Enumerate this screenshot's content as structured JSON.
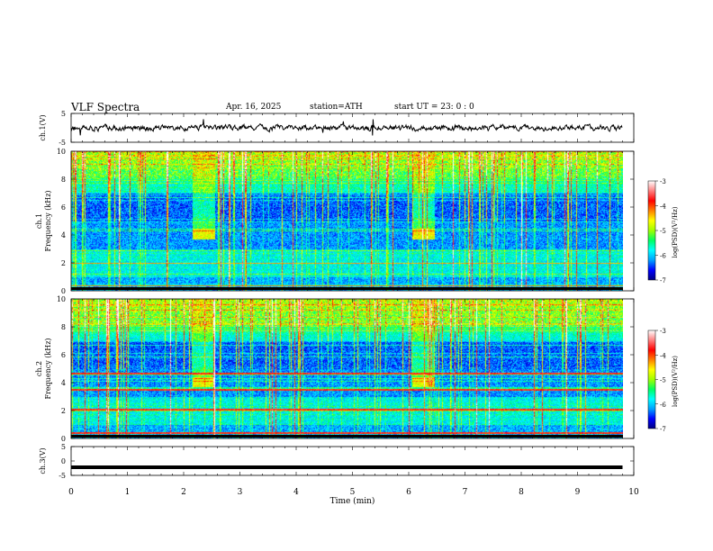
{
  "header": {
    "title": "VLF  Spectra",
    "date": "Apr. 16, 2025",
    "station": "station=ATH",
    "start_ut": "start  UT  =    23: 0   : 0"
  },
  "chart_data": [
    {
      "type": "line",
      "title": "",
      "ylabel": "ch.1(V)",
      "ylim": [
        -5,
        5
      ],
      "yticks": [
        "5",
        "-5"
      ],
      "xlim": [
        0,
        10
      ],
      "data_extent_x": [
        0,
        9.8
      ],
      "description_level": 0,
      "series": [
        {
          "values_approx": "noisy signal around 0 V, amplitude about ±1 V"
        }
      ]
    },
    {
      "type": "heatmap",
      "ylabel": "ch.1\nFrequency (kHz)",
      "ylim": [
        0,
        10
      ],
      "yticks": [
        "0",
        "2",
        "4",
        "6",
        "8",
        "10"
      ],
      "xlim": [
        0,
        10
      ],
      "data_extent_x": [
        0,
        9.8
      ],
      "colorbar": {
        "label": "log(PSD)(V²/Hz)",
        "range": [
          -7,
          -3
        ],
        "ticks": [
          "-3",
          "-4",
          "-5",
          "-6",
          "-7"
        ]
      },
      "bright_patches_min": [
        [
          2.15,
          2.55
        ],
        [
          6.05,
          6.45
        ]
      ],
      "patch_freq_khz": [
        3.7,
        4.4
      ]
    },
    {
      "type": "heatmap",
      "ylabel": "ch.2\nFrequency (kHz)",
      "ylim": [
        0,
        10
      ],
      "yticks": [
        "0",
        "2",
        "4",
        "6",
        "8",
        "10"
      ],
      "xlim": [
        0,
        10
      ],
      "data_extent_x": [
        0,
        9.8
      ],
      "colorbar": {
        "label": "log(PSD)(V²/Hz)",
        "range": [
          -7,
          -3
        ],
        "ticks": [
          "-3",
          "-4",
          "-5",
          "-6",
          "-7"
        ]
      },
      "narrowband_lines_khz": [
        4.7,
        3.5,
        2.1,
        0.4
      ],
      "bright_patches_min": [
        [
          2.15,
          2.55
        ],
        [
          6.05,
          6.45
        ]
      ]
    },
    {
      "type": "line",
      "ylabel": "ch.3(V)",
      "ylim": [
        -5,
        5
      ],
      "yticks": [
        "5",
        "0",
        "-5"
      ],
      "xlim": [
        0,
        10
      ],
      "data_extent_x": [
        0,
        9.8
      ],
      "series": [
        {
          "values": [
            -2.2
          ],
          "description": "flat thick line at about -2.2 V"
        }
      ]
    }
  ],
  "x_axis": {
    "label": "Time  (min)",
    "ticks": [
      "0",
      "1",
      "2",
      "3",
      "4",
      "5",
      "6",
      "7",
      "8",
      "9",
      "10"
    ]
  },
  "colors": {
    "colormap": [
      "#000080",
      "#0000ff",
      "#00a0ff",
      "#00ffff",
      "#00ff60",
      "#a0ff00",
      "#ffff00",
      "#ff8000",
      "#ff0000",
      "#ff8080",
      "#ffffff"
    ],
    "frame": "#000000"
  }
}
